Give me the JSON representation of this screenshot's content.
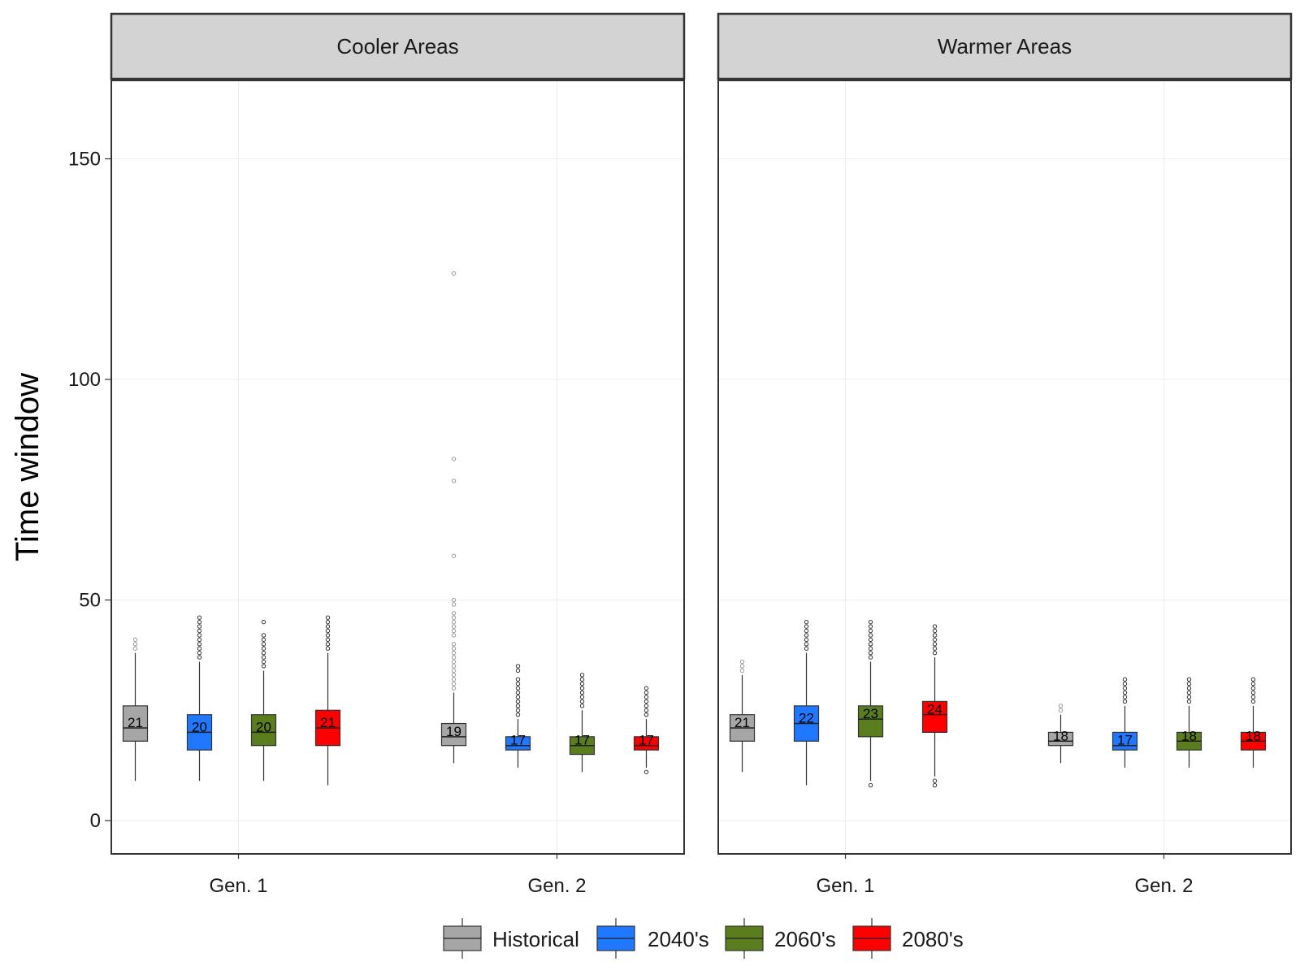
{
  "chart_data": {
    "type": "boxplot",
    "ylabel": "Time window",
    "yticks": [
      0,
      50,
      100,
      150
    ],
    "ylim": [
      -8,
      168
    ],
    "categories": [
      "Gen. 1",
      "Gen. 2"
    ],
    "legend": {
      "placement": "bottom",
      "entries": [
        {
          "name": "Historical",
          "color": "#A6A6A6"
        },
        {
          "name": "2040's",
          "color": "#1F78FF"
        },
        {
          "name": "2060's",
          "color": "#5A7D1E"
        },
        {
          "name": "2080's",
          "color": "#FF0000"
        }
      ]
    },
    "panels": [
      {
        "title": "Cooler Areas",
        "groups": [
          {
            "category": "Gen. 1",
            "boxes": [
              {
                "series": "Historical",
                "label": "21",
                "median": 21,
                "q1": 18,
                "q3": 26,
                "lower": 9,
                "upper": 38,
                "outliers": [
                  39,
                  40,
                  41
                ]
              },
              {
                "series": "2040's",
                "label": "20",
                "median": 20,
                "q1": 16,
                "q3": 24,
                "lower": 9,
                "upper": 36,
                "outliers": [
                  37,
                  38,
                  39,
                  40,
                  41,
                  42,
                  43,
                  44,
                  45,
                  46
                ]
              },
              {
                "series": "2060's",
                "label": "20",
                "median": 20,
                "q1": 17,
                "q3": 24,
                "lower": 9,
                "upper": 34,
                "outliers": [
                  35,
                  36,
                  37,
                  38,
                  39,
                  40,
                  41,
                  42,
                  45
                ]
              },
              {
                "series": "2080's",
                "label": "21",
                "median": 21,
                "q1": 17,
                "q3": 25,
                "lower": 8,
                "upper": 38,
                "outliers": [
                  39,
                  40,
                  41,
                  42,
                  43,
                  44,
                  45,
                  46
                ]
              }
            ]
          },
          {
            "category": "Gen. 2",
            "boxes": [
              {
                "series": "Historical",
                "label": "19",
                "median": 19,
                "q1": 17,
                "q3": 22,
                "lower": 13,
                "upper": 29,
                "outliers": [
                  30,
                  31,
                  32,
                  33,
                  34,
                  35,
                  36,
                  37,
                  38,
                  39,
                  40,
                  42,
                  43,
                  44,
                  45,
                  46,
                  47,
                  49,
                  50,
                  60,
                  77,
                  82,
                  124
                ]
              },
              {
                "series": "2040's",
                "label": "17",
                "median": 17,
                "q1": 16,
                "q3": 19,
                "lower": 12,
                "upper": 23,
                "outliers": [
                  24,
                  25,
                  26,
                  27,
                  28,
                  29,
                  30,
                  31,
                  32,
                  34,
                  35
                ]
              },
              {
                "series": "2060's",
                "label": "17",
                "median": 17,
                "q1": 15,
                "q3": 19,
                "lower": 11,
                "upper": 25,
                "outliers": [
                  26,
                  27,
                  28,
                  29,
                  30,
                  31,
                  32,
                  33
                ]
              },
              {
                "series": "2080's",
                "label": "17",
                "median": 17,
                "q1": 16,
                "q3": 19,
                "lower": 12,
                "upper": 23,
                "outliers": [
                  11,
                  24,
                  25,
                  26,
                  27,
                  28,
                  29,
                  30
                ]
              }
            ]
          }
        ]
      },
      {
        "title": "Warmer Areas",
        "groups": [
          {
            "category": "Gen. 1",
            "boxes": [
              {
                "series": "Historical",
                "label": "21",
                "median": 21,
                "q1": 18,
                "q3": 24,
                "lower": 11,
                "upper": 33,
                "outliers": [
                  34,
                  35,
                  36
                ]
              },
              {
                "series": "2040's",
                "label": "22",
                "median": 22,
                "q1": 18,
                "q3": 26,
                "lower": 8,
                "upper": 38,
                "outliers": [
                  39,
                  40,
                  41,
                  42,
                  43,
                  44,
                  45
                ]
              },
              {
                "series": "2060's",
                "label": "23",
                "median": 23,
                "q1": 19,
                "q3": 26,
                "lower": 9,
                "upper": 36,
                "outliers": [
                  8,
                  37,
                  38,
                  39,
                  40,
                  41,
                  42,
                  43,
                  44,
                  45
                ]
              },
              {
                "series": "2080's",
                "label": "24",
                "median": 24,
                "q1": 20,
                "q3": 27,
                "lower": 10,
                "upper": 37,
                "outliers": [
                  8,
                  9,
                  38,
                  39,
                  40,
                  41,
                  42,
                  43,
                  44
                ]
              }
            ]
          },
          {
            "category": "Gen. 2",
            "boxes": [
              {
                "series": "Historical",
                "label": "18",
                "median": 18,
                "q1": 17,
                "q3": 20,
                "lower": 13,
                "upper": 24,
                "outliers": [
                  25,
                  26
                ]
              },
              {
                "series": "2040's",
                "label": "17",
                "median": 17,
                "q1": 16,
                "q3": 20,
                "lower": 12,
                "upper": 26,
                "outliers": [
                  27,
                  28,
                  29,
                  30,
                  31,
                  32
                ]
              },
              {
                "series": "2060's",
                "label": "18",
                "median": 18,
                "q1": 16,
                "q3": 20,
                "lower": 12,
                "upper": 26,
                "outliers": [
                  27,
                  28,
                  29,
                  30,
                  31,
                  32
                ]
              },
              {
                "series": "2080's",
                "label": "18",
                "median": 18,
                "q1": 16,
                "q3": 20,
                "lower": 12,
                "upper": 26,
                "outliers": [
                  27,
                  28,
                  29,
                  30,
                  31,
                  32
                ]
              }
            ]
          }
        ]
      }
    ]
  }
}
